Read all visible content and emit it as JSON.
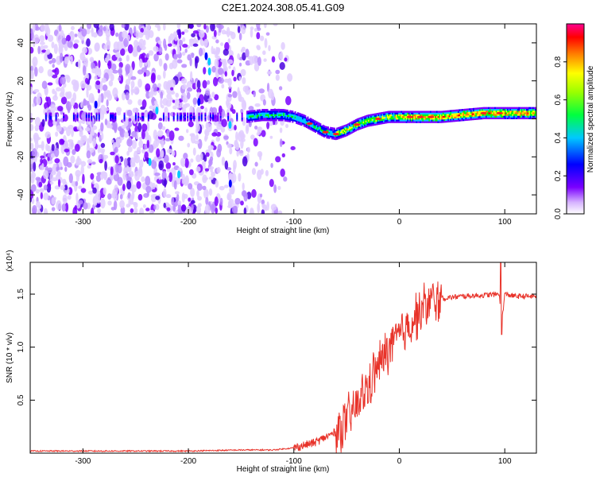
{
  "title": "C2E1.2024.308.05.41.G09",
  "chart_data": [
    {
      "type": "heatmap",
      "title": "C2E1.2024.308.05.41.G09",
      "xlabel": "Height of straight line (km)",
      "ylabel": "Frequency (Hz)",
      "xlim": [
        -350,
        130
      ],
      "ylim": [
        -50,
        50
      ],
      "x_ticks": [
        -300,
        -200,
        -100,
        0,
        100
      ],
      "y_ticks": [
        -40,
        -20,
        0,
        20,
        40
      ],
      "x_tick_labels": [
        "-300",
        "-200",
        "-100",
        "0",
        "100"
      ],
      "y_tick_labels": [
        "-40",
        "-20",
        "0",
        "20",
        "40"
      ],
      "colorbar": {
        "label": "Normalized spectral amplitude",
        "range": [
          0.0,
          1.0
        ],
        "ticks": [
          0.0,
          0.2,
          0.4,
          0.6,
          0.8
        ],
        "tick_labels": [
          "0.0",
          "0.2",
          "0.4",
          "0.6",
          "0.8"
        ],
        "colormap": "rainbow",
        "colors": [
          "#ffffff",
          "#7a00ff",
          "#0000ff",
          "#00c8ff",
          "#00ff00",
          "#ffff00",
          "#ff8000",
          "#ff0000",
          "#ff00a0"
        ]
      },
      "dominant_frequency_track": {
        "x": [
          -145,
          -130,
          -120,
          -110,
          -100,
          -90,
          -80,
          -70,
          -60,
          -55,
          -50,
          -40,
          -30,
          -20,
          -10,
          0,
          20,
          40,
          60,
          80,
          100,
          120,
          130
        ],
        "y": [
          1,
          2,
          2,
          2,
          1,
          -1,
          -4,
          -7,
          -8,
          -7,
          -6,
          -3,
          -1,
          0,
          1,
          1,
          1,
          1,
          2,
          3,
          3,
          3,
          3
        ]
      },
      "noise_region_xmax": -110
    },
    {
      "type": "line",
      "xlabel": "Height of straight line (km)",
      "ylabel": "SNR (10 * v/v)",
      "y_multiplier": "(x10⁴)",
      "xlim": [
        -350,
        130
      ],
      "ylim": [
        0,
        1.8
      ],
      "x_ticks": [
        -300,
        -200,
        -100,
        0,
        100
      ],
      "y_ticks": [
        0.5,
        1.0,
        1.5
      ],
      "x_tick_labels": [
        "-300",
        "-200",
        "-100",
        "0",
        "100"
      ],
      "y_tick_labels": [
        "0.5",
        "1.0",
        "1.5"
      ],
      "series_color": "#e8332a",
      "x": [
        -350,
        -300,
        -250,
        -200,
        -150,
        -120,
        -100,
        -80,
        -60,
        -50,
        -40,
        -30,
        -20,
        -15,
        -10,
        -5,
        0,
        10,
        20,
        30,
        40,
        60,
        80,
        95,
        97,
        100,
        110,
        120,
        130
      ],
      "y": [
        0.02,
        0.02,
        0.02,
        0.02,
        0.03,
        0.03,
        0.05,
        0.1,
        0.2,
        0.3,
        0.45,
        0.62,
        0.82,
        0.9,
        0.98,
        1.05,
        1.1,
        1.22,
        1.35,
        1.42,
        1.46,
        1.48,
        1.49,
        1.5,
        1.22,
        1.5,
        1.48,
        1.48,
        1.48
      ]
    }
  ]
}
